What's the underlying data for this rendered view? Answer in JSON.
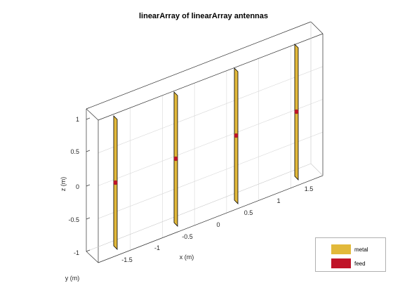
{
  "figure": {
    "title": "linearArray of linearArray antennas"
  },
  "axes": {
    "x_label": "x (m)",
    "y_label": "y (m)",
    "z_label": "z (m)",
    "z_ticks": [
      "1",
      "0.5",
      "0",
      "-0.5",
      "-1"
    ],
    "x_ticks": [
      "-1.5",
      "-1",
      "-0.5",
      "0",
      "0.5",
      "1",
      "1.5"
    ],
    "grid": true,
    "box": true
  },
  "colors": {
    "metal": "#e2b93b",
    "feed": "#c01428",
    "edge": "#000000",
    "grid": "#d9d9d9",
    "box_edge": "#333333"
  },
  "legend": {
    "items": [
      {
        "label": "metal",
        "color": "#e2b93b"
      },
      {
        "label": "feed",
        "color": "#c01428"
      }
    ]
  },
  "elements": {
    "count": 4,
    "part": "metal dipole strip",
    "feed_marker": "feed point at strip center"
  }
}
